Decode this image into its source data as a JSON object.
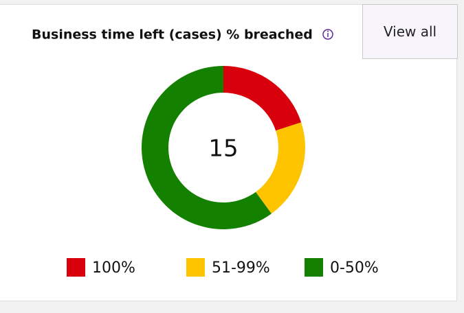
{
  "chart_data": {
    "type": "donut",
    "title": "Business time left (cases) % breached",
    "total": 15,
    "categories": [
      "100%",
      "51-99%",
      "0-50%"
    ],
    "values": [
      3,
      3,
      9
    ],
    "colors": [
      "#d9000d",
      "#ffc400",
      "#138000"
    ]
  },
  "button": {
    "label": "View all"
  }
}
